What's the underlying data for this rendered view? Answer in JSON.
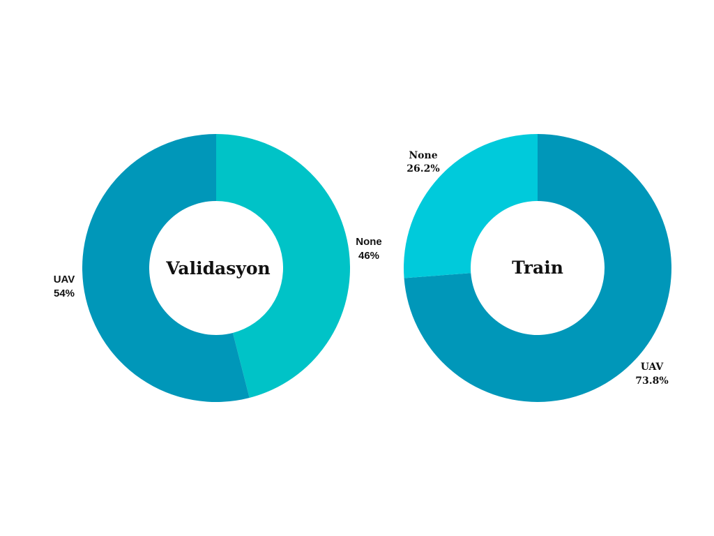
{
  "chart_data": [
    {
      "type": "pie",
      "style": "donut",
      "title": "Validasyon",
      "slices": [
        {
          "label": "None",
          "value": 46,
          "value_label": "46%",
          "color": "#00c3c7"
        },
        {
          "label": "UAV",
          "value": 54,
          "value_label": "54%",
          "color": "#0097b9"
        }
      ]
    },
    {
      "type": "pie",
      "style": "donut",
      "title": "Train",
      "slices": [
        {
          "label": "UAV",
          "value": 73.8,
          "value_label": "73.8%",
          "color": "#0097b9"
        },
        {
          "label": "None",
          "value": 26.2,
          "value_label": "26.2%",
          "color": "#00cadb"
        }
      ]
    }
  ]
}
